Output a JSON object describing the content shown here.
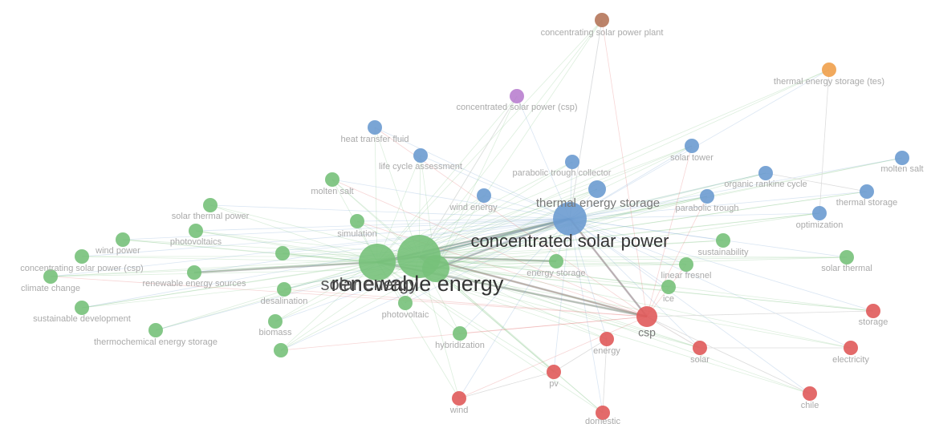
{
  "nodes": [
    {
      "label": "concentrating solar power plant",
      "color": "#b5765a"
    },
    {
      "label": "thermal energy storage (tes)",
      "color": "#f0a04b"
    },
    {
      "label": "concentrated solar power (csp)",
      "color": "#b97fcf"
    },
    {
      "label": "heat transfer fluid",
      "color": "#6b9bd0"
    },
    {
      "label": "life cycle assessment",
      "color": "#6b9bd0"
    },
    {
      "label": "parabolic trough collector",
      "color": "#6b9bd0"
    },
    {
      "label": "solar tower",
      "color": "#6b9bd0"
    },
    {
      "label": "molten salt",
      "color": "#6b9bd0"
    },
    {
      "label": "organic rankine cycle",
      "color": "#6b9bd0"
    },
    {
      "label": "thermal energy storage",
      "color": "#6b9bd0"
    },
    {
      "label": null,
      "color": "#6b9bd0"
    },
    {
      "label": "wind energy",
      "color": "#6b9bd0"
    },
    {
      "label": "parabolic trough",
      "color": "#6b9bd0"
    },
    {
      "label": "thermal storage",
      "color": "#6b9bd0"
    },
    {
      "label": "optimization",
      "color": "#6b9bd0"
    },
    {
      "label": "concentrated solar power",
      "color": "#77c17a"
    },
    {
      "label": "renewable energy",
      "color": "#77c17a"
    },
    {
      "label": "solar energy",
      "color": "#77c17a"
    },
    {
      "label": "molten salt",
      "color": "#77c17a"
    },
    {
      "label": "solar thermal power",
      "color": "#77c17a"
    },
    {
      "label": "photovoltaics",
      "color": "#77c17a"
    },
    {
      "label": "simulation",
      "color": "#77c17a"
    },
    {
      "label": "wind power",
      "color": "#77c17a"
    },
    {
      "label": "concentrating solar power (csp)",
      "color": "#77c17a"
    },
    {
      "label": "climate change",
      "color": "#77c17a"
    },
    {
      "label": "renewable energy sources",
      "color": "#77c17a"
    },
    {
      "label": null,
      "color": "#77c17a"
    },
    {
      "label": "desalination",
      "color": "#77c17a"
    },
    {
      "label": "sustainable development",
      "color": "#77c17a"
    },
    {
      "label": "biomass",
      "color": "#77c17a"
    },
    {
      "label": null,
      "color": "#77c17a"
    },
    {
      "label": "thermochemical energy storage",
      "color": "#77c17a"
    },
    {
      "label": "photovoltaic",
      "color": "#77c17a"
    },
    {
      "label": "hybridization",
      "color": "#77c17a"
    },
    {
      "label": "energy storage",
      "color": "#77c17a"
    },
    {
      "label": "sustainability",
      "color": "#77c17a"
    },
    {
      "label": "linear fresnel",
      "color": "#77c17a"
    },
    {
      "label": "ice",
      "color": "#77c17a"
    },
    {
      "label": "solar thermal",
      "color": "#77c17a"
    },
    {
      "label": "csp",
      "color": "#e05a5a"
    },
    {
      "label": "storage",
      "color": "#e05a5a"
    },
    {
      "label": "energy",
      "color": "#e05a5a"
    },
    {
      "label": "solar",
      "color": "#e05a5a"
    },
    {
      "label": "electricity",
      "color": "#e05a5a"
    },
    {
      "label": "pv",
      "color": "#e05a5a"
    },
    {
      "label": "wind",
      "color": "#e05a5a"
    },
    {
      "label": "domestic",
      "color": "#e05a5a"
    },
    {
      "label": "chile",
      "color": "#e05a5a"
    }
  ]
}
